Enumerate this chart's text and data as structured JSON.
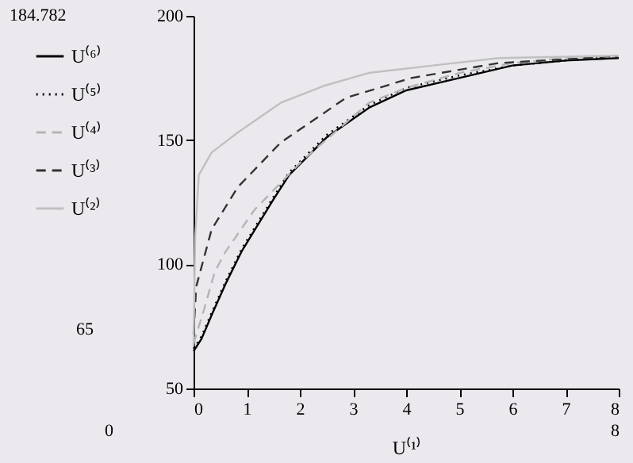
{
  "chart_data": {
    "type": "line",
    "xlabel": "U⁽¹⁾",
    "xlim": [
      0,
      8
    ],
    "xticks": [
      0,
      1,
      2,
      3,
      4,
      5,
      6,
      7,
      8
    ],
    "ylim": [
      50,
      200
    ],
    "yticks": [
      50,
      100,
      150,
      200
    ],
    "grid": false,
    "legend": "left",
    "annotations": [
      "184.782",
      "65",
      "0",
      "8"
    ],
    "series": [
      {
        "name": "U⁽⁶⁾",
        "color": "#000000",
        "line_style": "solid",
        "x": [
          0,
          0.15,
          0.35,
          0.6,
          0.9,
          1.1,
          1.5,
          1.8,
          2.5,
          3.3,
          4,
          5,
          6,
          7,
          8
        ],
        "values": [
          65,
          70,
          80,
          92,
          105,
          112,
          126,
          136,
          151,
          163,
          170,
          175,
          180,
          182,
          183
        ]
      },
      {
        "name": "U⁽⁵⁾",
        "color": "#000000",
        "line_style": "dotted",
        "x": [
          0,
          0.15,
          0.35,
          0.6,
          0.9,
          1.1,
          1.5,
          1.8,
          2.5,
          3.3,
          4,
          5,
          6,
          7,
          8
        ],
        "values": [
          66,
          71,
          81,
          93,
          106,
          113,
          127,
          137,
          152,
          164,
          171,
          176,
          180,
          182,
          184
        ]
      },
      {
        "name": "U⁽⁴⁾",
        "color": "#b4b4b4",
        "line_style": "dashed",
        "x": [
          0,
          0.2,
          0.4,
          0.6,
          1.15,
          2.06,
          3.3,
          4,
          5,
          6,
          7,
          8
        ],
        "values": [
          68,
          82,
          97,
          105,
          122,
          142,
          165,
          171,
          177,
          181,
          183,
          184
        ]
      },
      {
        "name": "U⁽³⁾",
        "color": "#333333",
        "line_style": "dashed",
        "x": [
          0,
          0.05,
          0.34,
          0.83,
          1.64,
          2.87,
          4.1,
          5.74,
          7.4,
          8
        ],
        "values": [
          72,
          91,
          114,
          131,
          149,
          167,
          175,
          181,
          183,
          184
        ]
      },
      {
        "name": "U⁽²⁾",
        "color": "#c0c0c0",
        "line_style": "solid",
        "x": [
          0,
          0.03,
          0.1,
          0.34,
          0.83,
          1.64,
          2.48,
          3.29,
          4.5,
          5.74,
          8
        ],
        "values": [
          67,
          111,
          136,
          145,
          153,
          165,
          172,
          177,
          180,
          183,
          184
        ]
      }
    ]
  }
}
